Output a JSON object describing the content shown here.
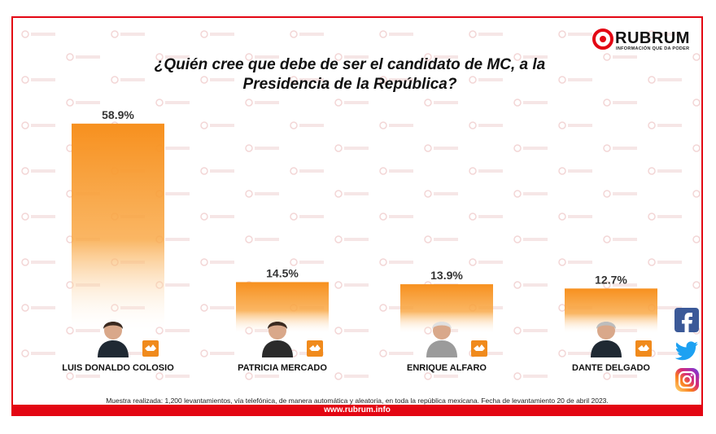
{
  "header": {
    "logo_name": "RUBRUM",
    "logo_tagline": "INFORMACIÓN QUE DA PODER",
    "brand_color": "#e30613"
  },
  "chart_data": {
    "type": "bar",
    "title": "¿Quién cree que debe de ser el candidato de MC, a la Presidencia de la República?",
    "categories": [
      "LUIS DONALDO COLOSIO",
      "PATRICIA MERCADO",
      "ENRIQUE ALFARO",
      "DANTE DELGADO"
    ],
    "values": [
      58.9,
      14.5,
      13.9,
      12.7
    ],
    "value_labels": [
      "58.9%",
      "14.5%",
      "13.9%",
      "12.7%"
    ],
    "unit": "%",
    "ylim": [
      0,
      60
    ],
    "grid": false,
    "legend": "none",
    "bar_color": "#f7901e"
  },
  "footer": {
    "note": "Muestra realizada: 1,200 levantamientos, vía telefónica, de manera automática y aleatoria, en toda la república mexicana. Fecha de levantamiento 20 de abril 2023.",
    "url": "www.rubrum.info"
  },
  "social": {
    "icons": [
      "facebook-icon",
      "twitter-icon",
      "instagram-icon"
    ]
  }
}
